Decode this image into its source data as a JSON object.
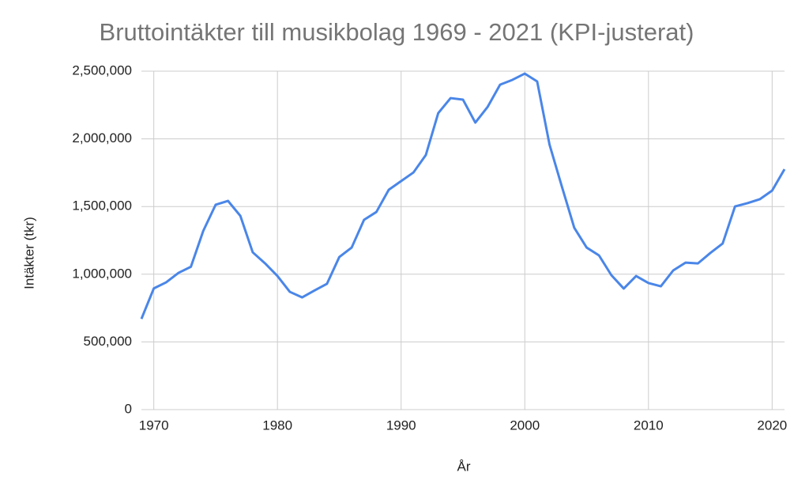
{
  "chart_data": {
    "type": "line",
    "title": "Bruttointäkter till musikbolag 1969 - 2021 (KPI-justerat)",
    "x_label": "År",
    "y_label": "Intäkter (tkr)",
    "x": [
      1969,
      1970,
      1971,
      1972,
      1973,
      1974,
      1975,
      1976,
      1977,
      1978,
      1979,
      1980,
      1981,
      1982,
      1983,
      1984,
      1985,
      1986,
      1987,
      1988,
      1989,
      1990,
      1991,
      1992,
      1993,
      1994,
      1995,
      1996,
      1997,
      1998,
      1999,
      2000,
      2001,
      2002,
      2003,
      2004,
      2005,
      2006,
      2007,
      2008,
      2009,
      2010,
      2011,
      2012,
      2013,
      2014,
      2015,
      2016,
      2017,
      2018,
      2019,
      2020,
      2021
    ],
    "values": [
      670000,
      895000,
      940000,
      1010000,
      1055000,
      1320000,
      1513000,
      1542000,
      1431000,
      1162000,
      1080000,
      987000,
      870000,
      829000,
      880000,
      929000,
      1127000,
      1197000,
      1402000,
      1460000,
      1624000,
      1688000,
      1752000,
      1881000,
      2190000,
      2301000,
      2290000,
      2120000,
      2237000,
      2400000,
      2436000,
      2482000,
      2424000,
      1957000,
      1647000,
      1343000,
      1197000,
      1139000,
      993000,
      894000,
      987000,
      935000,
      911000,
      1028000,
      1086000,
      1080000,
      1157000,
      1227000,
      1501000,
      1525000,
      1554000,
      1618000,
      1776000
    ],
    "color": "#4a86e8",
    "xlim": [
      1969,
      2021
    ],
    "xticks": [
      1970,
      1980,
      1990,
      2000,
      2010,
      2020
    ],
    "ylim": [
      0,
      2500000
    ],
    "yticks": [
      0,
      {
        "value": 500000,
        "label": "500,000"
      },
      {
        "value": 1000000,
        "label": "1,000,000"
      },
      {
        "value": 1500000,
        "label": "1,500,000"
      },
      {
        "value": 2000000,
        "label": "2,000,000"
      },
      {
        "value": 2500000,
        "label": "2,500,000"
      }
    ],
    "grid": true
  }
}
